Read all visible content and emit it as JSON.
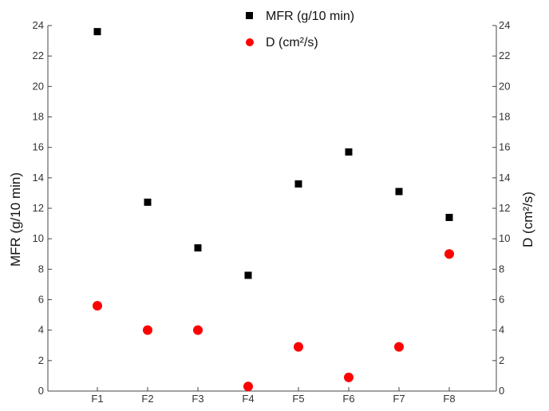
{
  "chart_data": {
    "type": "scatter",
    "title": "",
    "categories": [
      "F1",
      "F2",
      "F3",
      "F4",
      "F5",
      "F6",
      "F7",
      "F8"
    ],
    "xlabel": "",
    "ylabel_left": "MFR (g/10 min)",
    "ylabel_right": "D (cm²/s)",
    "ylim": [
      0,
      24
    ],
    "yticks": [
      "0",
      "2",
      "4",
      "6",
      "8",
      "10",
      "12",
      "14",
      "16",
      "18",
      "20",
      "22",
      "24"
    ],
    "grid": false,
    "legend_position": "top",
    "series": [
      {
        "name": "MFR (g/10 min)",
        "axis": "left",
        "marker": "square",
        "color": "#000000",
        "values": [
          23.6,
          12.4,
          9.4,
          7.6,
          13.6,
          15.7,
          13.1,
          11.4
        ]
      },
      {
        "name": "D (cm²/s)",
        "axis": "right",
        "marker": "circle",
        "color": "#ff0000",
        "values": [
          5.6,
          4.0,
          4.0,
          0.3,
          2.9,
          0.9,
          2.9,
          9.0
        ]
      }
    ]
  }
}
